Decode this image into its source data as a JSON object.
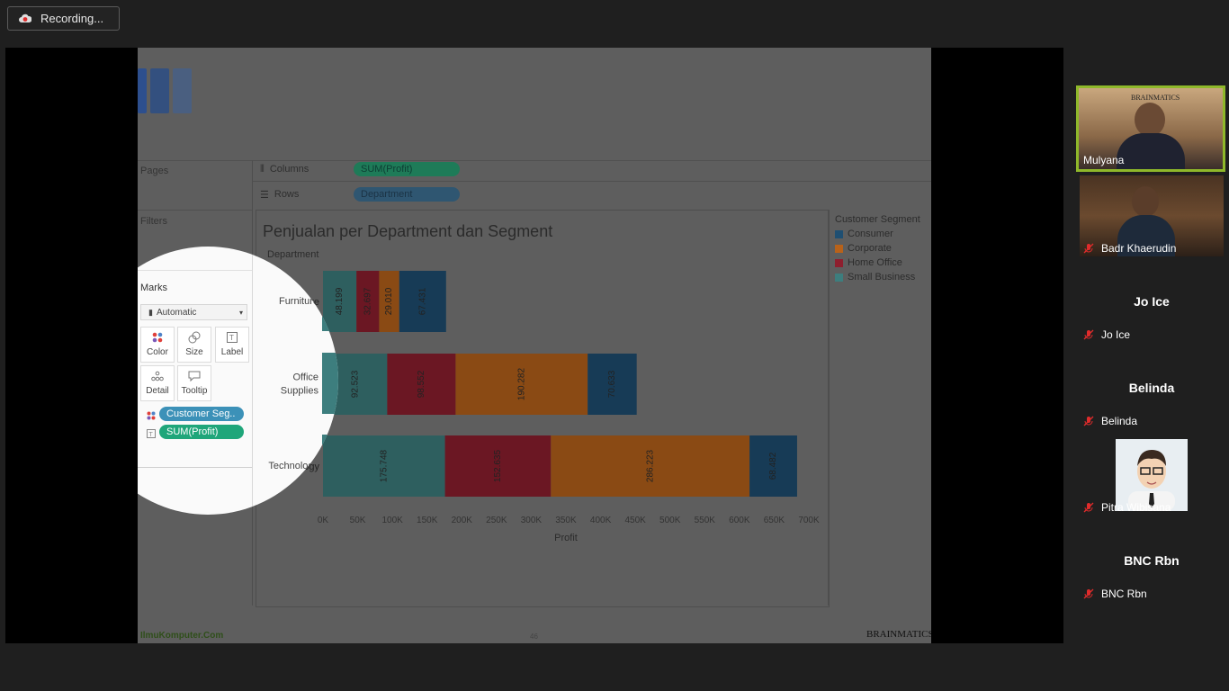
{
  "recording": {
    "label": "Recording...",
    "icon": "cloud-record-icon"
  },
  "slide": {
    "shelf_pages": "Pages",
    "shelf_filters": "Filters",
    "columns_label": "Columns",
    "rows_label": "Rows",
    "columns_pill": "SUM(Profit)",
    "rows_pill": "Department",
    "marks_title": "Marks",
    "mark_type": "Automatic",
    "mark_buttons": {
      "color": "Color",
      "size": "Size",
      "label": "Label",
      "detail": "Detail",
      "tooltip": "Tooltip"
    },
    "mark_pills": [
      "Customer Seg..",
      "SUM(Profit)"
    ],
    "footer_left": "IlmuKomputer.Com",
    "footer_page": "46",
    "footer_brand": "BRAINMATICS"
  },
  "legend": {
    "title": "Customer Segment",
    "items": [
      {
        "label": "Consumer",
        "color": "#1f4f72"
      },
      {
        "label": "Corporate",
        "color": "#b8621a"
      },
      {
        "label": "Home Office",
        "color": "#8e1f2e"
      },
      {
        "label": "Small Business",
        "color": "#3d7e7e"
      }
    ]
  },
  "chart_data": {
    "type": "bar",
    "orientation": "horizontal-stacked",
    "title": "Penjualan per Department dan Segment",
    "row_header": "Department",
    "xlabel": "Profit",
    "categories": [
      "Furniture",
      "Office\nSupplies",
      "Technology"
    ],
    "stack_order": [
      "Small Business",
      "Home Office",
      "Corporate",
      "Consumer"
    ],
    "series": [
      {
        "name": "Small Business",
        "values": [
          48199,
          92523,
          175748
        ],
        "labels": [
          "48.199",
          "92.523",
          "175.748"
        ],
        "color": "#3d7e7e"
      },
      {
        "name": "Home Office",
        "values": [
          32697,
          98552,
          152635
        ],
        "labels": [
          "32.697",
          "98.552",
          "152.635"
        ],
        "color": "#8e1f2e"
      },
      {
        "name": "Corporate",
        "values": [
          29010,
          190282,
          286223
        ],
        "labels": [
          "29.010",
          "190.282",
          "286.223"
        ],
        "color": "#b8621a"
      },
      {
        "name": "Consumer",
        "values": [
          67431,
          70633,
          68482
        ],
        "labels": [
          "67.431",
          "70.633",
          "68.482"
        ],
        "color": "#1f4f72"
      }
    ],
    "xticks": [
      "0K",
      "50K",
      "100K",
      "150K",
      "200K",
      "250K",
      "300K",
      "350K",
      "400K",
      "450K",
      "500K",
      "550K",
      "600K",
      "650K",
      "700K"
    ],
    "xlim": [
      0,
      700000
    ]
  },
  "participants": [
    {
      "name": "Mulyana",
      "video": true,
      "active": true,
      "muted": false
    },
    {
      "name": "Badr Khaerudin",
      "video": true,
      "active": false,
      "muted": true
    },
    {
      "name": "Jo Ice",
      "video": false,
      "muted": true
    },
    {
      "name": "Belinda",
      "video": false,
      "muted": true
    },
    {
      "name": "Pitra Wibisana",
      "video": false,
      "avatar": true,
      "muted": true
    },
    {
      "name": "BNC Rbn",
      "video": false,
      "muted": true
    }
  ]
}
